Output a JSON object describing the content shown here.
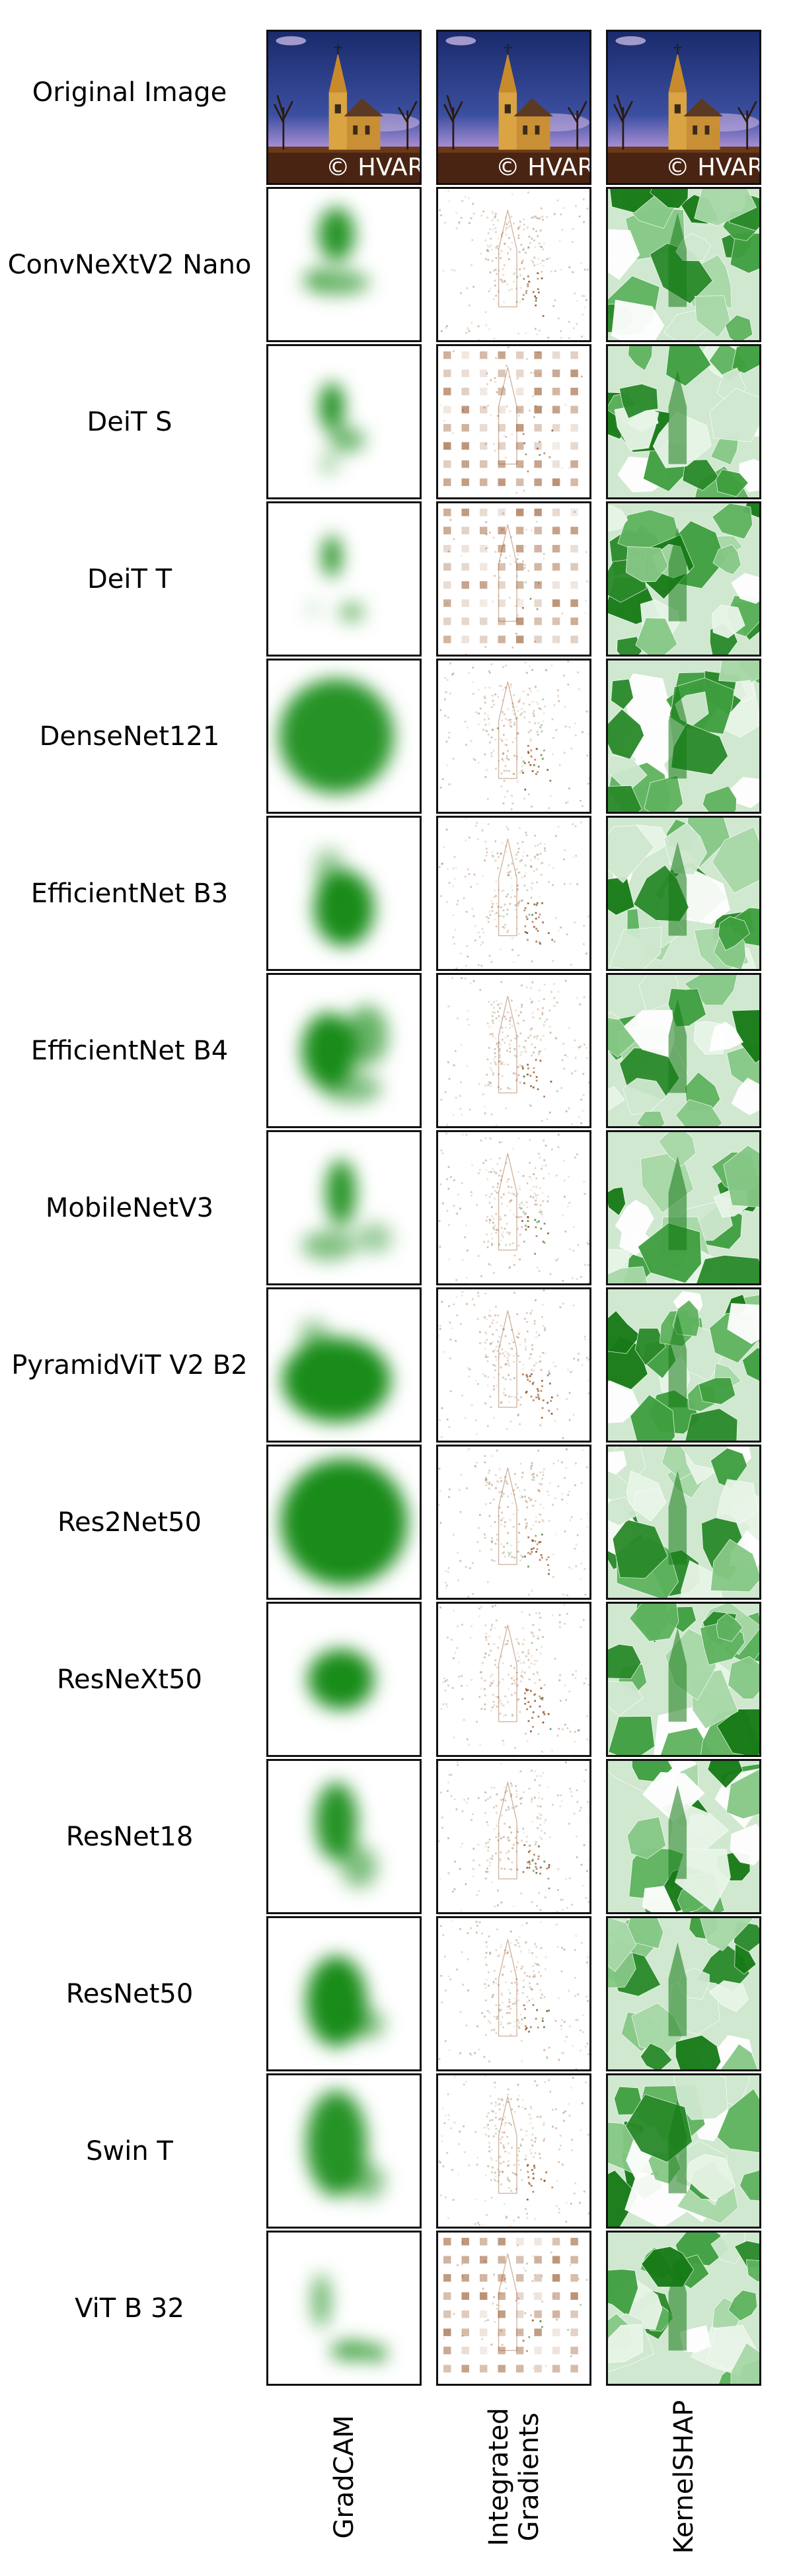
{
  "original_row": {
    "label": "Original Image",
    "watermark": "© HVARGAS IMAGE"
  },
  "columns": [
    "GradCAM",
    "Integrated Gradients",
    "KernelSHAP"
  ],
  "column_label_lines": [
    [
      "GradCAM"
    ],
    [
      "Integrated",
      "Gradients"
    ],
    [
      "KernelSHAP"
    ]
  ],
  "models": [
    "ConvNeXtV2 Nano",
    "DeiT S",
    "DeiT T",
    "DenseNet121",
    "EfficientNet B3",
    "EfficientNet B4",
    "MobileNetV3",
    "PyramidViT V2 B2",
    "Res2Net50",
    "ResNeXt50",
    "ResNet18",
    "ResNet50",
    "Swin T",
    "ViT B 32"
  ],
  "colors": {
    "gradcam": "#008000",
    "ig": "#8b4513",
    "shap": "#2e8b2e",
    "sky_top": "#1a2a6c",
    "sky_mid": "#7b5fb5",
    "church": "#d9a441",
    "ground": "#4a2412"
  }
}
